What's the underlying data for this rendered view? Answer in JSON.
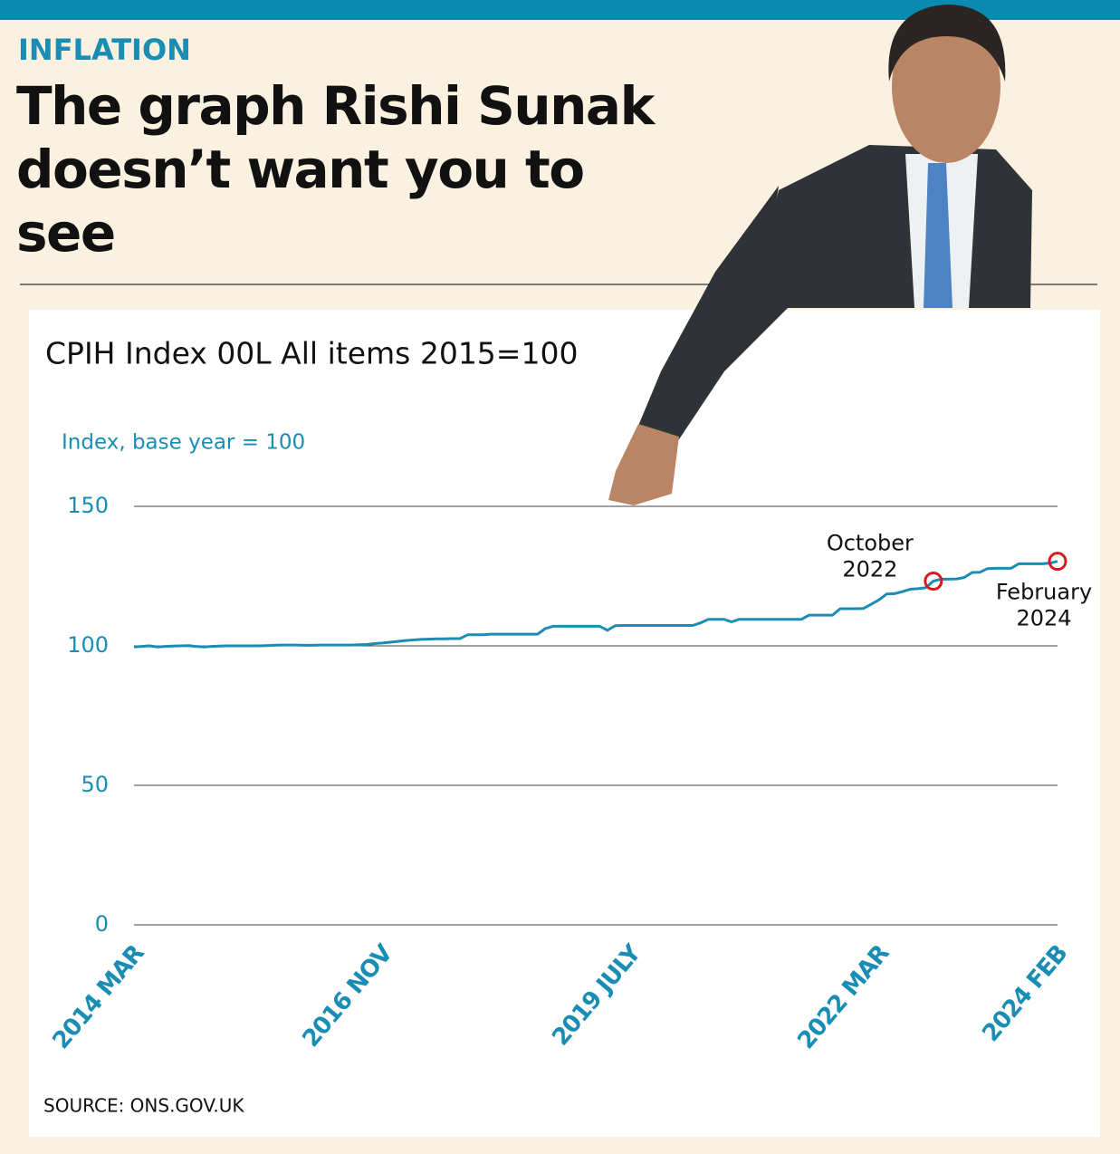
{
  "kicker": "INFLATION",
  "headline": "The graph Rishi Sunak doesn’t want you to see",
  "source": "SOURCE: ONS.GOV.UK",
  "chart_data": {
    "type": "line",
    "title": "CPIH Index 00L All items 2015=100",
    "y_axis_label": "Index, base year = 100",
    "categories": [
      "2014 MAR",
      null,
      null,
      null,
      null,
      null,
      null,
      null,
      null,
      null,
      null,
      null,
      null,
      null,
      null,
      null,
      null,
      null,
      null,
      null,
      null,
      null,
      null,
      null,
      null,
      null,
      null,
      null,
      null,
      null,
      null,
      null,
      "2016 NOV",
      null,
      null,
      null,
      null,
      null,
      null,
      null,
      null,
      null,
      null,
      null,
      null,
      null,
      null,
      null,
      null,
      null,
      null,
      null,
      null,
      null,
      null,
      null,
      null,
      null,
      null,
      null,
      null,
      null,
      null,
      null,
      "2019 JULY",
      null,
      null,
      null,
      null,
      null,
      null,
      null,
      null,
      null,
      null,
      null,
      null,
      null,
      null,
      null,
      null,
      null,
      null,
      null,
      null,
      null,
      null,
      null,
      null,
      null,
      null,
      null,
      null,
      null,
      null,
      null,
      "2022 MAR",
      null,
      null,
      null,
      null,
      null,
      null,
      null,
      null,
      null,
      null,
      null,
      null,
      null,
      null,
      null,
      null,
      null,
      null,
      null,
      null,
      null,
      null,
      "2024 FEB"
    ],
    "values": [
      99.6,
      99.8,
      100.0,
      99.6,
      99.8,
      99.9,
      100.0,
      100.1,
      99.8,
      99.6,
      99.8,
      99.9,
      100.0,
      100.0,
      100.0,
      100.0,
      100.0,
      100.1,
      100.2,
      100.3,
      100.3,
      100.3,
      100.2,
      100.2,
      100.3,
      100.3,
      100.3,
      100.3,
      100.3,
      100.4,
      100.5,
      100.8,
      101.0,
      101.3,
      101.6,
      101.9,
      102.1,
      102.3,
      102.4,
      102.5,
      102.5,
      102.6,
      102.6,
      104.0,
      104.0,
      104.0,
      104.2,
      104.2,
      104.2,
      104.2,
      104.2,
      104.2,
      104.2,
      106.2,
      107.0,
      107.0,
      107.0,
      107.0,
      107.0,
      107.0,
      107.0,
      105.6,
      107.2,
      107.3,
      107.3,
      107.3,
      107.3,
      107.3,
      107.3,
      107.3,
      107.3,
      107.3,
      107.3,
      108.2,
      109.5,
      109.5,
      109.5,
      108.6,
      109.5,
      109.5,
      109.5,
      109.5,
      109.5,
      109.5,
      109.5,
      109.5,
      109.5,
      111.0,
      111.0,
      111.0,
      111.0,
      113.3,
      113.3,
      113.3,
      113.4,
      114.9,
      116.5,
      118.6,
      118.7,
      119.4,
      120.3,
      120.5,
      120.8,
      123.2,
      123.9,
      123.9,
      124.0,
      124.5,
      126.3,
      126.4,
      127.7,
      127.8,
      127.8,
      127.8,
      129.4,
      129.4,
      129.4,
      129.4,
      129.6,
      130.3
    ],
    "color": "#1a8db5",
    "ylim": [
      0,
      150
    ],
    "yticks": [
      0,
      50,
      100,
      150
    ],
    "grid": true,
    "annotations": [
      {
        "text": "October 2022",
        "index": 103,
        "color": "#d71920"
      },
      {
        "text": "February 2024",
        "index": 119,
        "color": "#d71920"
      }
    ]
  }
}
